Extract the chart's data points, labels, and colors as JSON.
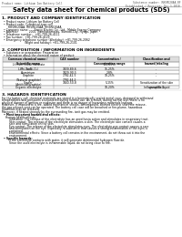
{
  "doc_title": "Safety data sheet for chemical products (SDS)",
  "header_left": "Product name: Lithium Ion Battery Cell",
  "header_right_line1": "Substance number: RH5RE20AA-RF",
  "header_right_line2": "Established / Revision: Dec.1.2010",
  "background_color": "#ffffff",
  "text_color": "#000000",
  "section1_title": "1. PRODUCT AND COMPANY IDENTIFICATION",
  "section1_lines": [
    "  • Product name: Lithium Ion Battery Cell",
    "  • Product code: Cylindrical-type cell",
    "       RH5RE20AA, RH5RE20AA, RH5RE20AA",
    "  • Company name:      Sanyo Electric Co., Ltd., Mobile Energy Company",
    "  • Address:            2001  Kamitakamatsu, Sumoto-City, Hyogo, Japan",
    "  • Telephone number:   +81-799-26-4111",
    "  • Fax number:  +81-799-26-4129",
    "  • Emergency telephone number (Weekday): +81-799-26-2062",
    "                         (Night and holiday): +81-799-26-2101"
  ],
  "section2_title": "2. COMPOSITION / INFORMATION ON INGREDIENTS",
  "section2_intro": "  • Substance or preparation: Preparation",
  "section2_sub": "  • Information about the chemical nature of product:",
  "table_col_names": [
    "Common chemical name /\nScientific name",
    "CAS number",
    "Concentration /\nConcentration range",
    "Classification and\nhazard labeling"
  ],
  "table_rows": [
    [
      "Lithium cobalt tandrate\n(LiMn-Co-Ni-O₄)",
      "-",
      "(30-65%)",
      "-"
    ],
    [
      "Iron",
      "7439-89-6",
      "15-25%",
      "-"
    ],
    [
      "Aluminium",
      "7429-90-5",
      "2-8%",
      "-"
    ],
    [
      "Graphite\n(Natural graphite)\n(Artificial graphite)",
      "7782-42-5\n7782-44-2",
      "10-25%",
      "-"
    ],
    [
      "Copper",
      "7440-50-8",
      "5-15%",
      "Sensitization of the skin\ngroup No.2"
    ],
    [
      "Organic electrolyte",
      "-",
      "10-20%",
      "Inflammable liquid"
    ]
  ],
  "section3_title": "3. HAZARDS IDENTIFICATION",
  "section3_para": [
    "For the battery cell, chemical materials are stored in a hermetically sealed metal case, designed to withstand",
    "temperatures and pressures encountered during normal use. As a result, during normal use, there is no",
    "physical danger of ignition or explosion and there is no danger of hazardous materials leakage.",
    "However, if exposed to a fire, added mechanical shocks, decomposed, shorted electric short the misuse,",
    "the gas release vent can be operated. The battery cell case will be breached or fire-plume, hazardous",
    "materials may be released.",
    "Moreover, if heated strongly by the surrounding fire, ionit gas may be emitted."
  ],
  "section3_bullet1_title": "  • Most important hazard and effects:",
  "section3_bullet1_lines": [
    "    Human health effects:",
    "        Inhalation: The release of the electrolyte has an anesthesia action and stimulates in respiratory tract.",
    "        Skin contact: The release of the electrolyte stimulates a skin. The electrolyte skin contact causes a",
    "        sore and stimulation on the skin.",
    "        Eye contact: The release of the electrolyte stimulates eyes. The electrolyte eye contact causes a sore",
    "        and stimulation on the eye. Especially, a substance that causes a strong inflammation of the eyes is",
    "        contained.",
    "        Environmental effects: Since a battery cell remains in the environment, do not throw out it into the",
    "        environment."
  ],
  "section3_bullet2_title": "  • Specific hazards:",
  "section3_bullet2_lines": [
    "        If the electrolyte contacts with water, it will generate detrimental hydrogen fluoride.",
    "        Since the used electrolyte is inflammable liquid, do not bring close to fire."
  ]
}
